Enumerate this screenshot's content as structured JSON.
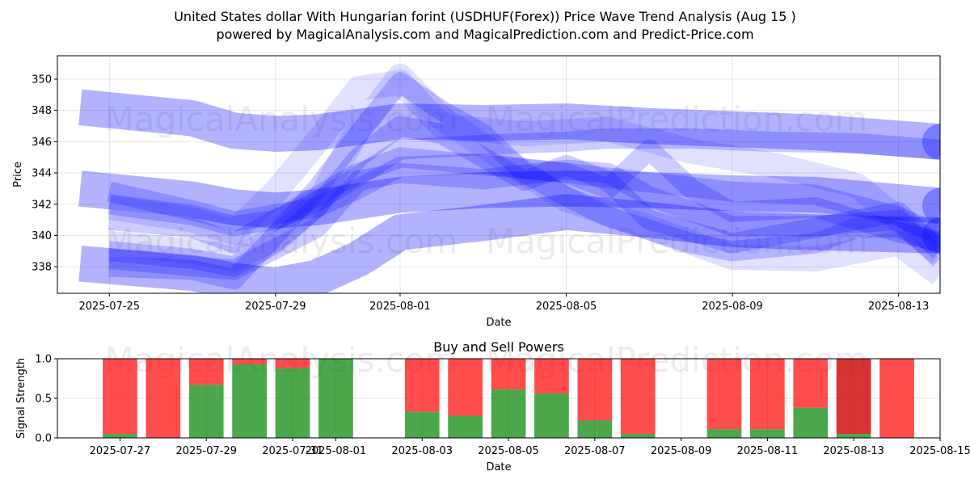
{
  "title_line1": "United States dollar With Hungarian forint (USDHUF(Forex)) Price Wave Trend Analysis (Aug 15 )",
  "title_line2": "powered by MagicalAnalysis.com and MagicalPrediction.com and Predict-Price.com",
  "watermarks": [
    "MagicalAnalysis.com",
    "MagicalPrediction.com"
  ],
  "colors": {
    "wave": "#0000ff",
    "buy": "#008000",
    "sell": "#ff0000",
    "sell_dark": "#cc0000",
    "axis": "#000000",
    "grid": "#cccccc",
    "watermark": "#b0b0b0"
  },
  "chart_data": [
    {
      "type": "area",
      "title": "",
      "xlabel": "Date",
      "ylabel": "Price",
      "x_start": "2025-07-24",
      "xlim": [
        -0.25,
        21.0
      ],
      "ylim": [
        336.3,
        351.5
      ],
      "xticks": [
        {
          "day": 1,
          "label": "2025-07-25"
        },
        {
          "day": 5,
          "label": "2025-07-29"
        },
        {
          "day": 8,
          "label": "2025-08-01"
        },
        {
          "day": 12,
          "label": "2025-08-05"
        },
        {
          "day": 16,
          "label": "2025-08-09"
        },
        {
          "day": 20,
          "label": "2025-08-13"
        }
      ],
      "yticks": [
        338,
        340,
        342,
        344,
        346,
        348,
        350
      ],
      "grid": true,
      "bands": [
        {
          "name": "upper-channel",
          "opacity": 0.3,
          "width": 2.3,
          "end_dot": true,
          "points": [
            [
              0.3,
              348.2
            ],
            [
              3,
              347.5
            ],
            [
              4,
              346.7
            ],
            [
              5,
              346.5
            ],
            [
              6,
              346.6
            ],
            [
              8,
              347.3
            ],
            [
              10,
              347.2
            ],
            [
              12,
              347.3
            ],
            [
              14,
              347.0
            ],
            [
              16,
              346.8
            ],
            [
              18,
              346.6
            ],
            [
              21,
              346.0
            ]
          ]
        },
        {
          "name": "middle-channel",
          "opacity": 0.3,
          "width": 2.3,
          "end_dot": true,
          "points": [
            [
              0.3,
              343.0
            ],
            [
              3,
              342.3
            ],
            [
              4,
              341.8
            ],
            [
              5,
              341.6
            ],
            [
              6,
              341.8
            ],
            [
              8,
              342.6
            ],
            [
              10,
              342.9
            ],
            [
              12,
              343.0
            ],
            [
              14,
              342.9
            ],
            [
              16,
              342.7
            ],
            [
              18,
              342.6
            ],
            [
              21,
              341.9
            ]
          ]
        },
        {
          "name": "lower-channel",
          "opacity": 0.3,
          "width": 2.3,
          "end_dot": true,
          "points": [
            [
              0.3,
              338.2
            ],
            [
              3,
              337.6
            ],
            [
              4,
              337.1
            ],
            [
              5,
              336.8
            ],
            [
              6,
              337.3
            ],
            [
              7,
              338.5
            ],
            [
              8,
              340.2
            ],
            [
              10,
              340.8
            ],
            [
              12,
              341.5
            ],
            [
              14,
              341.0
            ],
            [
              16,
              340.4
            ],
            [
              18,
              340.2
            ],
            [
              21,
              340.0
            ]
          ]
        },
        {
          "name": "wave-a",
          "opacity": 0.2,
          "width": 1.3,
          "end_dot": false,
          "points": [
            [
              1,
              342.0
            ],
            [
              3,
              341.3
            ],
            [
              4,
              340.6
            ],
            [
              5,
              341.0
            ],
            [
              6,
              342.2
            ],
            [
              7,
              343.8
            ],
            [
              8,
              345.5
            ],
            [
              10,
              345.8
            ],
            [
              12,
              346.0
            ],
            [
              13,
              346.2
            ],
            [
              15,
              346.2
            ],
            [
              17,
              346.0
            ],
            [
              19,
              345.9
            ],
            [
              21,
              345.5
            ]
          ]
        },
        {
          "name": "wave-b",
          "opacity": 0.2,
          "width": 1.3,
          "end_dot": false,
          "points": [
            [
              1,
              338.0
            ],
            [
              3,
              337.8
            ],
            [
              4,
              337.2
            ],
            [
              5,
              340.0
            ],
            [
              6,
              343.0
            ],
            [
              7,
              346.5
            ],
            [
              8,
              349.8
            ],
            [
              9,
              348.0
            ],
            [
              10,
              346.5
            ],
            [
              11,
              344.0
            ],
            [
              12,
              342.5
            ],
            [
              13,
              341.2
            ],
            [
              15,
              339.5
            ],
            [
              16,
              339.0
            ],
            [
              18,
              339.5
            ],
            [
              19,
              340.5
            ],
            [
              20,
              340.5
            ],
            [
              21,
              339.4
            ]
          ]
        },
        {
          "name": "wave-c",
          "opacity": 0.2,
          "width": 1.3,
          "end_dot": false,
          "points": [
            [
              1,
              339.0
            ],
            [
              3,
              338.5
            ],
            [
              4,
              338.0
            ],
            [
              5,
              339.5
            ],
            [
              6,
              341.8
            ],
            [
              7,
              345.0
            ],
            [
              8,
              347.0
            ],
            [
              9,
              346.5
            ],
            [
              10,
              345.0
            ],
            [
              11,
              343.5
            ],
            [
              12,
              344.5
            ],
            [
              13,
              343.5
            ],
            [
              14,
              341.0
            ],
            [
              16,
              339.5
            ],
            [
              18,
              340.5
            ],
            [
              20,
              341.5
            ],
            [
              21,
              339.0
            ]
          ]
        },
        {
          "name": "wave-d",
          "opacity": 0.2,
          "width": 1.3,
          "end_dot": false,
          "points": [
            [
              1,
              341.0
            ],
            [
              3,
              340.5
            ],
            [
              4,
              339.5
            ],
            [
              5,
              341.0
            ],
            [
              6,
              342.5
            ],
            [
              7,
              344.0
            ],
            [
              8,
              345.0
            ],
            [
              10,
              344.5
            ],
            [
              12,
              344.0
            ],
            [
              13,
              343.0
            ],
            [
              14,
              345.5
            ],
            [
              15,
              343.0
            ],
            [
              16,
              341.5
            ],
            [
              18,
              341.8
            ],
            [
              20,
              340.2
            ],
            [
              21,
              339.6
            ]
          ]
        },
        {
          "name": "wave-e",
          "opacity": 0.2,
          "width": 1.3,
          "end_dot": false,
          "points": [
            [
              1,
              338.5
            ],
            [
              4,
              337.8
            ],
            [
              6,
              340.5
            ],
            [
              7,
              343.5
            ],
            [
              8,
              344.0
            ],
            [
              10,
              343.6
            ],
            [
              12,
              344.2
            ],
            [
              13,
              344.0
            ],
            [
              14,
              342.5
            ],
            [
              16,
              340.6
            ],
            [
              18,
              340.6
            ],
            [
              20,
              341.0
            ],
            [
              21,
              338.5
            ]
          ]
        },
        {
          "name": "wave-f",
          "opacity": 0.2,
          "width": 1.3,
          "end_dot": false,
          "points": [
            [
              1,
              342.8
            ],
            [
              3,
              341.6
            ],
            [
              4,
              340.9
            ],
            [
              6,
              341.8
            ],
            [
              7,
              343.0
            ],
            [
              8,
              344.4
            ],
            [
              10,
              344.6
            ],
            [
              12,
              344.0
            ],
            [
              14,
              343.4
            ],
            [
              16,
              342.8
            ],
            [
              18,
              342.6
            ],
            [
              20,
              341.2
            ],
            [
              21,
              340.0
            ]
          ]
        },
        {
          "name": "wave-g",
          "opacity": 0.12,
          "width": 1.6,
          "end_dot": false,
          "points": [
            [
              1,
              339.5
            ],
            [
              3,
              339.0
            ],
            [
              4,
              338.5
            ],
            [
              5,
              339.8
            ],
            [
              6,
              342.0
            ],
            [
              7,
              346.8
            ],
            [
              8,
              350.2
            ],
            [
              9,
              347.5
            ],
            [
              11,
              344.0
            ],
            [
              12,
              342.3
            ],
            [
              14,
              340.5
            ],
            [
              16,
              338.6
            ],
            [
              18,
              338.5
            ],
            [
              20,
              339.5
            ],
            [
              21,
              337.5
            ]
          ]
        },
        {
          "name": "wave-h",
          "opacity": 0.12,
          "width": 1.6,
          "end_dot": false,
          "points": [
            [
              1,
              341.8
            ],
            [
              3,
              341.0
            ],
            [
              4,
              340.2
            ],
            [
              5,
              342.8
            ],
            [
              6,
              346.0
            ],
            [
              7,
              349.4
            ],
            [
              8,
              349.8
            ],
            [
              9,
              347.0
            ],
            [
              11,
              346.5
            ],
            [
              13,
              346.8
            ],
            [
              15,
              345.4
            ],
            [
              17,
              344.5
            ],
            [
              19,
              343.2
            ],
            [
              21,
              338.8
            ]
          ]
        }
      ]
    },
    {
      "type": "bar",
      "title": "Buy and Sell Powers",
      "xlabel": "Date",
      "ylabel": "Signal Strength",
      "x_start": "2025-07-26",
      "xlim": [
        -0.45,
        20.0
      ],
      "ylim": [
        0,
        1
      ],
      "yticks": [
        {
          "value": 0.0,
          "label": "0.0"
        },
        {
          "value": 0.5,
          "label": "0.5"
        },
        {
          "value": 1.0,
          "label": "1.0"
        }
      ],
      "xticks": [
        {
          "day": 1,
          "label": "2025-07-27"
        },
        {
          "day": 3,
          "label": "2025-07-29"
        },
        {
          "day": 5,
          "label": "2025-07-31"
        },
        {
          "day": 6,
          "label": "2025-08-01"
        },
        {
          "day": 8,
          "label": "2025-08-03"
        },
        {
          "day": 10,
          "label": "2025-08-05"
        },
        {
          "day": 12,
          "label": "2025-08-07"
        },
        {
          "day": 14,
          "label": "2025-08-09"
        },
        {
          "day": 16,
          "label": "2025-08-11"
        },
        {
          "day": 18,
          "label": "2025-08-13"
        },
        {
          "day": 20,
          "label": "2025-08-15"
        }
      ],
      "grid": true,
      "bar_width": 0.8,
      "series": [
        {
          "name": "Buy",
          "color": "#008000"
        },
        {
          "name": "Sell",
          "color": "#ff0000"
        }
      ],
      "bars": [
        {
          "day": 1,
          "buy": 0.05,
          "highlight": false
        },
        {
          "day": 2,
          "buy": 0.0,
          "highlight": false
        },
        {
          "day": 3,
          "buy": 0.67,
          "highlight": false
        },
        {
          "day": 4,
          "buy": 0.93,
          "highlight": false
        },
        {
          "day": 5,
          "buy": 0.88,
          "highlight": false
        },
        {
          "day": 6,
          "buy": 1.0,
          "highlight": false
        },
        {
          "day": 8,
          "buy": 0.33,
          "highlight": false
        },
        {
          "day": 9,
          "buy": 0.28,
          "highlight": false
        },
        {
          "day": 10,
          "buy": 0.61,
          "highlight": false
        },
        {
          "day": 11,
          "buy": 0.56,
          "highlight": false
        },
        {
          "day": 12,
          "buy": 0.22,
          "highlight": false
        },
        {
          "day": 13,
          "buy": 0.05,
          "highlight": false
        },
        {
          "day": 15,
          "buy": 0.11,
          "highlight": false
        },
        {
          "day": 16,
          "buy": 0.11,
          "highlight": false
        },
        {
          "day": 17,
          "buy": 0.38,
          "highlight": false
        },
        {
          "day": 18,
          "buy": 0.05,
          "highlight": true
        },
        {
          "day": 19,
          "buy": 0.0,
          "highlight": false
        }
      ]
    }
  ]
}
